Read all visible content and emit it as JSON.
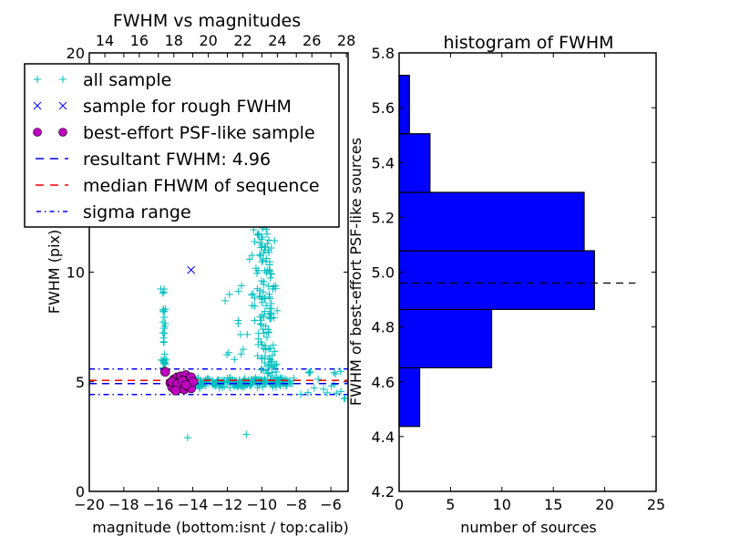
{
  "chart_data": [
    {
      "type": "scatter",
      "title": "FWHM vs magnitudes",
      "xlabel": "magnitude (bottom:isnt / top:calib)",
      "ylabel": "FWHM (pix)",
      "xlim": [
        -20,
        -5
      ],
      "ylim": [
        0,
        20
      ],
      "xticks": [
        "−20",
        "−18",
        "−16",
        "−14",
        "−12",
        "−10",
        "−8",
        "−6"
      ],
      "xtick_values": [
        -20,
        -18,
        -16,
        -14,
        -12,
        -10,
        -8,
        -6
      ],
      "yticks": [
        "0",
        "5",
        "10",
        "20"
      ],
      "ytick_values": [
        0,
        5,
        10,
        20
      ],
      "top_axis": {
        "label_values": [
          "14",
          "16",
          "18",
          "20",
          "22",
          "24",
          "26",
          "28"
        ],
        "values": [
          14,
          16,
          18,
          20,
          22,
          24,
          26,
          28
        ],
        "offset_from_bottom": 33.1
      },
      "legend": {
        "placement": "upper-left",
        "entries": [
          {
            "label": "all sample",
            "marker": "plus",
            "color": "#00bfbf"
          },
          {
            "label": "sample for rough FWHM",
            "marker": "x",
            "color": "#0000ff"
          },
          {
            "label": "best-effort PSF-like sample",
            "marker": "circle",
            "color": "#bf00bf"
          },
          {
            "label": "resultant FWHM: 4.96",
            "marker": "dashed",
            "color": "#0000ff"
          },
          {
            "label": "median FHWM of sequence",
            "marker": "dashed",
            "color": "#ff0000"
          },
          {
            "label": "sigma range",
            "marker": "dashdot",
            "color": "#0000ff"
          }
        ]
      },
      "lines": {
        "resultant_fwhm": 4.96,
        "median_fwhm": 5.02,
        "sigma_low": 4.42,
        "sigma_high": 5.58
      },
      "series": [
        {
          "name": "sample for rough FWHM",
          "points": [
            [
              -14.1,
              10.1
            ]
          ]
        },
        {
          "name": "best-effort PSF-like sample",
          "points": [
            [
              -15.6,
              5.45
            ],
            [
              -15.3,
              4.95
            ],
            [
              -15.2,
              4.75
            ],
            [
              -15.1,
              5.1
            ],
            [
              -15.0,
              4.85
            ],
            [
              -14.9,
              5.2
            ],
            [
              -14.8,
              4.7
            ],
            [
              -14.8,
              5.0
            ],
            [
              -14.7,
              5.25
            ],
            [
              -14.6,
              4.9
            ],
            [
              -14.5,
              4.65
            ],
            [
              -14.5,
              5.1
            ],
            [
              -14.4,
              5.3
            ],
            [
              -14.3,
              4.8
            ],
            [
              -14.3,
              5.05
            ],
            [
              -14.2,
              4.95
            ],
            [
              -14.1,
              5.2
            ],
            [
              -14.1,
              4.7
            ],
            [
              -14.0,
              5.0
            ],
            [
              -15.2,
              5.0
            ],
            [
              -14.9,
              4.9
            ],
            [
              -14.6,
              5.05
            ],
            [
              -15.0,
              4.6
            ],
            [
              -14.4,
              4.85
            ]
          ]
        }
      ]
    },
    {
      "type": "bar",
      "orientation": "horizontal",
      "title": "histogram of FWHM",
      "xlabel": "number of sources",
      "ylabel": "FWHM of best-effort PSF-like sources",
      "xlim": [
        0,
        25
      ],
      "ylim": [
        4.2,
        5.8
      ],
      "xticks": [
        "0",
        "5",
        "10",
        "15",
        "20",
        "25"
      ],
      "xtick_values": [
        0,
        5,
        10,
        15,
        20,
        25
      ],
      "yticks": [
        "4.2",
        "4.4",
        "4.6",
        "4.8",
        "5.0",
        "5.2",
        "5.4",
        "5.6",
        "5.8"
      ],
      "ytick_values": [
        4.2,
        4.4,
        4.6,
        4.8,
        5.0,
        5.2,
        5.4,
        5.6,
        5.8
      ],
      "bin_edges": [
        4.437,
        4.651,
        4.864,
        5.078,
        5.291,
        5.505,
        5.718
      ],
      "values": [
        2,
        9,
        19,
        18,
        3,
        1
      ],
      "bar_color": "#0000ff",
      "reference_line": {
        "y": 4.96,
        "x_end": 23,
        "style": "dashed",
        "color": "#000000"
      }
    }
  ]
}
